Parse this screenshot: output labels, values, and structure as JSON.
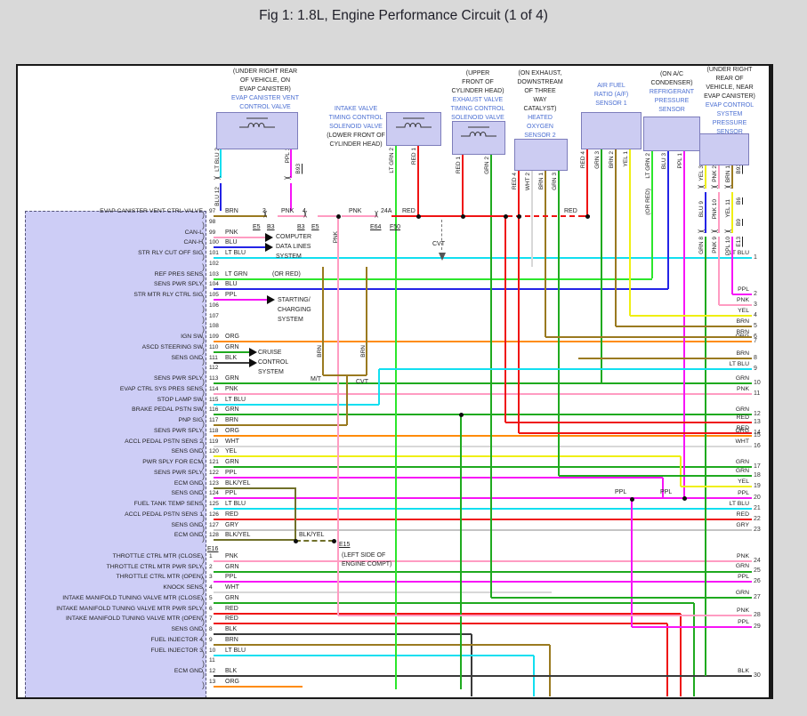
{
  "title": "Fig 1: 1.8L, Engine Performance Circuit (1 of 4)",
  "palette": {
    "brn": "#9a7a20",
    "pnk": "#ff9cc2",
    "blu": "#2424e6",
    "lt_blu": "#12dff0",
    "lt_grn": "#2ce62c",
    "grn": "#1faa1f",
    "ppl": "#f714f7",
    "org": "#ff8c0a",
    "yel": "#efef12",
    "red": "#ef1414",
    "wht": "#d8d8d8",
    "blk": "#3a3a3a",
    "gry": "#c4c4c4",
    "blkyel": "#70702a",
    "component_fill": "#ccccf2",
    "component_border": "#7d7dbb",
    "component_name_blue": "#4a6ed2",
    "ecm_fill": "#cdcdf6",
    "page_gray": "#d9d9d9",
    "junction_black": "#0d0d0d"
  },
  "components": [
    {
      "lines": [
        {
          "text": "(UNDER RIGHT REAR",
          "kind": "loc"
        },
        {
          "text": "OF VEHICLE, ON",
          "kind": "loc"
        },
        {
          "text": "EVAP CANISTER)",
          "kind": "loc"
        },
        {
          "text": "EVAP CANISTER VENT",
          "kind": "name"
        },
        {
          "text": "CONTROL VALVE",
          "kind": "name"
        }
      ],
      "type": "solenoid"
    },
    {
      "lines": [
        {
          "text": "INTAKE VALVE",
          "kind": "name"
        },
        {
          "text": "TIMING CONTROL",
          "kind": "name"
        },
        {
          "text": "SOLENOID VALVE",
          "kind": "name"
        },
        {
          "text": "(LOWER FRONT OF",
          "kind": "loc"
        },
        {
          "text": "CYLINDER HEAD)",
          "kind": "loc"
        }
      ],
      "type": "solenoid"
    },
    {
      "lines": [
        {
          "text": "(UPPER",
          "kind": "loc"
        },
        {
          "text": "FRONT OF",
          "kind": "loc"
        },
        {
          "text": "CYLINDER HEAD)",
          "kind": "loc"
        },
        {
          "text": "EXHAUST VALVE",
          "kind": "name"
        },
        {
          "text": "TIMING CONTROL",
          "kind": "name"
        },
        {
          "text": "SOLENOID VALVE",
          "kind": "name"
        }
      ],
      "type": "solenoid"
    },
    {
      "lines": [
        {
          "text": "(ON EXHAUST,",
          "kind": "loc"
        },
        {
          "text": "DOWNSTREAM",
          "kind": "loc"
        },
        {
          "text": "OF THREE",
          "kind": "loc"
        },
        {
          "text": "WAY",
          "kind": "loc"
        },
        {
          "text": "CATALYST)",
          "kind": "loc"
        },
        {
          "text": "HEATED",
          "kind": "name"
        },
        {
          "text": "OXYGEN",
          "kind": "name"
        },
        {
          "text": "SENSOR 2",
          "kind": "name"
        }
      ],
      "type": "sensor"
    },
    {
      "lines": [
        {
          "text": "AIR FUEL",
          "kind": "name"
        },
        {
          "text": "RATIO (A/F)",
          "kind": "name"
        },
        {
          "text": "SENSOR 1",
          "kind": "name"
        }
      ],
      "type": "sensor"
    },
    {
      "lines": [
        {
          "text": "(ON A/C",
          "kind": "loc"
        },
        {
          "text": "CONDENSER)",
          "kind": "loc"
        },
        {
          "text": "REFRIGERANT",
          "kind": "name"
        },
        {
          "text": "PRESSURE",
          "kind": "name"
        },
        {
          "text": "SENSOR",
          "kind": "name"
        }
      ],
      "type": "sensor"
    },
    {
      "lines": [
        {
          "text": "(UNDER RIGHT",
          "kind": "loc"
        },
        {
          "text": "REAR OF",
          "kind": "loc"
        },
        {
          "text": "VEHICLE, NEAR",
          "kind": "loc"
        },
        {
          "text": "EVAP CANISTER)",
          "kind": "loc"
        },
        {
          "text": "EVAP CONTROL",
          "kind": "name"
        },
        {
          "text": "SYSTEM",
          "kind": "name"
        },
        {
          "text": "PRESSURE",
          "kind": "name"
        },
        {
          "text": "SENSOR",
          "kind": "name"
        }
      ],
      "type": "sensor"
    }
  ],
  "wire_tags": [
    {
      "text": "LT BLU 2"
    },
    {
      "text": "PPL 1"
    },
    {
      "text": "B93",
      "id": true
    },
    {
      "text": "BLU 12"
    },
    {
      "text": "LT GRN 2"
    },
    {
      "text": "RED 1"
    },
    {
      "text": "RED 1"
    },
    {
      "text": "GRN 2"
    },
    {
      "text": "RED 4"
    },
    {
      "text": "WHT 2"
    },
    {
      "text": "BRN 1"
    },
    {
      "text": "GRN 3"
    },
    {
      "text": "RED 4"
    },
    {
      "text": "GRN 3"
    },
    {
      "text": "BRN 2"
    },
    {
      "text": "YEL 1"
    },
    {
      "text": "LT GRN 2"
    },
    {
      "text": "(OR RED)"
    },
    {
      "text": "BLU 3"
    },
    {
      "text": "PPL 1"
    },
    {
      "text": "YEL 3"
    },
    {
      "text": "PNK 2"
    },
    {
      "text": "BRN 1"
    },
    {
      "text": "B93",
      "id": true
    },
    {
      "text": "BLU 9"
    },
    {
      "text": "PNK 10"
    },
    {
      "text": "YEL 11"
    },
    {
      "text": "B6",
      "id": true
    },
    {
      "text": "GRN 8"
    },
    {
      "text": "PNK 9"
    },
    {
      "text": "PPL 10"
    },
    {
      "text": "B9",
      "id": true
    },
    {
      "text": "E13",
      "id": true
    },
    {
      "text": "BRN"
    },
    {
      "text": "BRN"
    },
    {
      "text": "PNK"
    }
  ],
  "labels": [
    {
      "text": "3"
    },
    {
      "text": "E5",
      "id": true
    },
    {
      "text": "B3",
      "id": true
    },
    {
      "text": "4"
    },
    {
      "text": "B3",
      "id": true
    },
    {
      "text": "E5",
      "id": true
    },
    {
      "text": "PNK"
    },
    {
      "text": "PNK"
    },
    {
      "text": "24A"
    },
    {
      "text": "E64",
      "id": true
    },
    {
      "text": "F50",
      "id": true
    },
    {
      "text": "RED"
    },
    {
      "text": "RED"
    },
    {
      "text": "CVT"
    },
    {
      "text": "M/T"
    },
    {
      "text": "CVT"
    },
    {
      "text": "BLK/YEL"
    },
    {
      "text": "E15",
      "id": true
    },
    {
      "text": "(LEFT SIDE OF"
    },
    {
      "text": "ENGINE COMPT)"
    },
    {
      "text": "PPL"
    },
    {
      "text": "PPL"
    }
  ],
  "callouts": {
    "computer": [
      "COMPUTER",
      "DATA LINES",
      "SYSTEM"
    ],
    "starting": [
      "STARTING/",
      "CHARGING",
      "SYSTEM"
    ],
    "cruise": [
      "CRUISE",
      "CONTROL",
      "SYSTEM"
    ]
  },
  "ecm": {
    "rows": [
      {
        "pin": "97",
        "label": "EVAP CANISTER VENT CTRL VALVE",
        "color": "BRN"
      },
      {
        "pin": "98",
        "label": "",
        "color": ""
      },
      {
        "pin": "99",
        "label": "CAN-L",
        "color": "PNK"
      },
      {
        "pin": "100",
        "label": "CAN-H",
        "color": "BLU"
      },
      {
        "pin": "101",
        "label": "STR RLY CUT OFF SIG",
        "color": "LT BLU",
        "exit": 1
      },
      {
        "pin": "102",
        "label": "",
        "color": ""
      },
      {
        "pin": "103",
        "label": "REF PRES SENS",
        "color": "LT GRN",
        "note": "(OR RED)"
      },
      {
        "pin": "104",
        "label": "SENS PWR SPLY",
        "color": "BLU"
      },
      {
        "pin": "105",
        "label": "STR MTR RLY CTRL SIG",
        "color": "PPL"
      },
      {
        "pin": "106",
        "label": "",
        "color": ""
      },
      {
        "pin": "107",
        "label": "",
        "color": ""
      },
      {
        "pin": "108",
        "label": "",
        "color": ""
      },
      {
        "pin": "109",
        "label": "IGN SW",
        "color": "ORG",
        "exit": 7
      },
      {
        "pin": "110",
        "label": "ASCD STEERING SW",
        "color": "GRN"
      },
      {
        "pin": "111",
        "label": "SENS GND",
        "color": "BLK"
      },
      {
        "pin": "112",
        "label": "",
        "color": ""
      },
      {
        "pin": "113",
        "label": "SENS PWR SPLY",
        "color": "GRN",
        "exit": 10
      },
      {
        "pin": "114",
        "label": "EVAP CTRL SYS PRES SENS",
        "color": "PNK",
        "exit": 11
      },
      {
        "pin": "115",
        "label": "STOP LAMP SW",
        "color": "LT BLU"
      },
      {
        "pin": "116",
        "label": "BRAKE PEDAL PSTN SW",
        "color": "GRN",
        "exit": 12
      },
      {
        "pin": "117",
        "label": "PNP SIG",
        "color": "BRN"
      },
      {
        "pin": "118",
        "label": "SENS PWR SPLY",
        "color": "ORG",
        "exit": 15
      },
      {
        "pin": "119",
        "label": "ACCL PEDAL PSTN SENS 2",
        "color": "WHT",
        "exit": 16
      },
      {
        "pin": "120",
        "label": "SENS GND",
        "color": "YEL",
        "exit": 19
      },
      {
        "pin": "121",
        "label": "PWR SPLY FOR ECM",
        "color": "GRN",
        "exit": 17
      },
      {
        "pin": "122",
        "label": "SENS PWR SPLY",
        "color": "PPL"
      },
      {
        "pin": "123",
        "label": "ECM GND",
        "color": "BLK/YEL"
      },
      {
        "pin": "124",
        "label": "SENS GND",
        "color": "PPL",
        "exit": 20
      },
      {
        "pin": "125",
        "label": "FUEL TANK TEMP SENS",
        "color": "LT BLU",
        "exit": 21
      },
      {
        "pin": "126",
        "label": "ACCL PEDAL PSTN SENS 1",
        "color": "RED",
        "exit": 22
      },
      {
        "pin": "127",
        "label": "SENS GND",
        "color": "GRY",
        "exit": 23
      },
      {
        "pin": "128",
        "label": "ECM GND",
        "color": "BLK/YEL"
      },
      {
        "pin": "E16",
        "label": "",
        "color": "",
        "connector": true
      },
      {
        "pin": "1",
        "label": "THROTTLE CTRL MTR (CLOSE)",
        "color": "PNK",
        "exit": 24
      },
      {
        "pin": "2",
        "label": "THROTTLE CTRL MTR PWR SPLY",
        "color": "GRN",
        "exit": 25
      },
      {
        "pin": "3",
        "label": "THROTTLE CTRL MTR (OPEN)",
        "color": "PPL",
        "exit": 26
      },
      {
        "pin": "4",
        "label": "KNOCK SENS",
        "color": "WHT"
      },
      {
        "pin": "5",
        "label": "INTAKE MANIFOLD TUNING VALVE MTR (CLOSE)",
        "color": "GRN"
      },
      {
        "pin": "6",
        "label": "INTAKE MANIFOLD TUNING VALVE MTR PWR SPLY",
        "color": "RED"
      },
      {
        "pin": "7",
        "label": "INTAKE MANIFOLD TUNING VALVE MTR (OPEN)",
        "color": "RED"
      },
      {
        "pin": "8",
        "label": "SENS GND",
        "color": "BLK"
      },
      {
        "pin": "9",
        "label": "FUEL INJECTOR 4",
        "color": "BRN"
      },
      {
        "pin": "10",
        "label": "FUEL INJECTOR 3",
        "color": "LT BLU"
      },
      {
        "pin": "11",
        "label": "",
        "color": ""
      },
      {
        "pin": "12",
        "label": "ECM GND",
        "color": "BLK",
        "exit": 30
      },
      {
        "pin": "13",
        "label": "",
        "color": "ORG"
      }
    ]
  },
  "exits": [
    {
      "n": 1,
      "color": "LT BLU"
    },
    {
      "n": 2,
      "color": "PPL"
    },
    {
      "n": 3,
      "color": "PNK"
    },
    {
      "n": 4,
      "color": "YEL"
    },
    {
      "n": 5,
      "color": "BRN"
    },
    {
      "n": 6,
      "color": "BRN"
    },
    {
      "n": 7,
      "color": "ORG"
    },
    {
      "n": 8,
      "color": "BRN"
    },
    {
      "n": 9,
      "color": "LT BLU"
    },
    {
      "n": 10,
      "color": "GRN"
    },
    {
      "n": 11,
      "color": "PNK"
    },
    {
      "n": 12,
      "color": "GRN"
    },
    {
      "n": 13,
      "color": "RED"
    },
    {
      "n": 14,
      "color": "RED"
    },
    {
      "n": 15,
      "color": "ORG"
    },
    {
      "n": 16,
      "color": "WHT"
    },
    {
      "n": 17,
      "color": "GRN"
    },
    {
      "n": 18,
      "color": "GRN"
    },
    {
      "n": 19,
      "color": "YEL"
    },
    {
      "n": 20,
      "color": "PPL"
    },
    {
      "n": 21,
      "color": "LT BLU"
    },
    {
      "n": 22,
      "color": "RED"
    },
    {
      "n": 23,
      "color": "GRY"
    },
    {
      "n": 24,
      "color": "PNK"
    },
    {
      "n": 25,
      "color": "GRN"
    },
    {
      "n": 26,
      "color": "PPL"
    },
    {
      "n": 27,
      "color": "GRN"
    },
    {
      "n": 28,
      "color": "PNK"
    },
    {
      "n": 29,
      "color": "PPL"
    },
    {
      "n": 30,
      "color": "BLK"
    }
  ]
}
